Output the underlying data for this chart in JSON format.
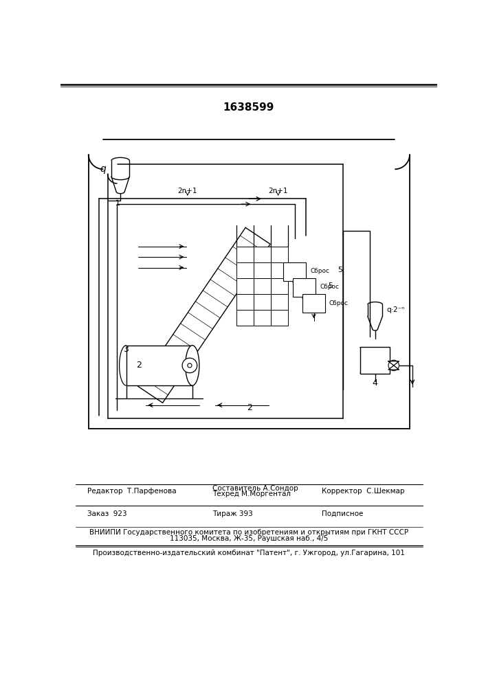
{
  "patent_number": "1638599",
  "bg": "#ffffff",
  "lc": "#000000",
  "bottom_section": {
    "editor_line": "Редактор  Т.Парфенова",
    "composer_line1": "Составитель А.Сондор",
    "composer_line2": "Техред М.Моргентал",
    "corrector_line": "Корректор  С.Шекмар",
    "order_line": "Заказ  923",
    "circulation_line": "Тираж 393",
    "subscription_line": "Подписное",
    "vniipи_line1": "ВНИИПИ Государственного комитета по изобретениям и открытиям при ГКНТ СССР",
    "vniipи_line2": "113035, Москва, Ж-35, Раушская наб., 4/5",
    "publisher_line": "Производственно-издательский комбинат \"Патент\", г. Ужгород, ул.Гагарина, 101"
  }
}
